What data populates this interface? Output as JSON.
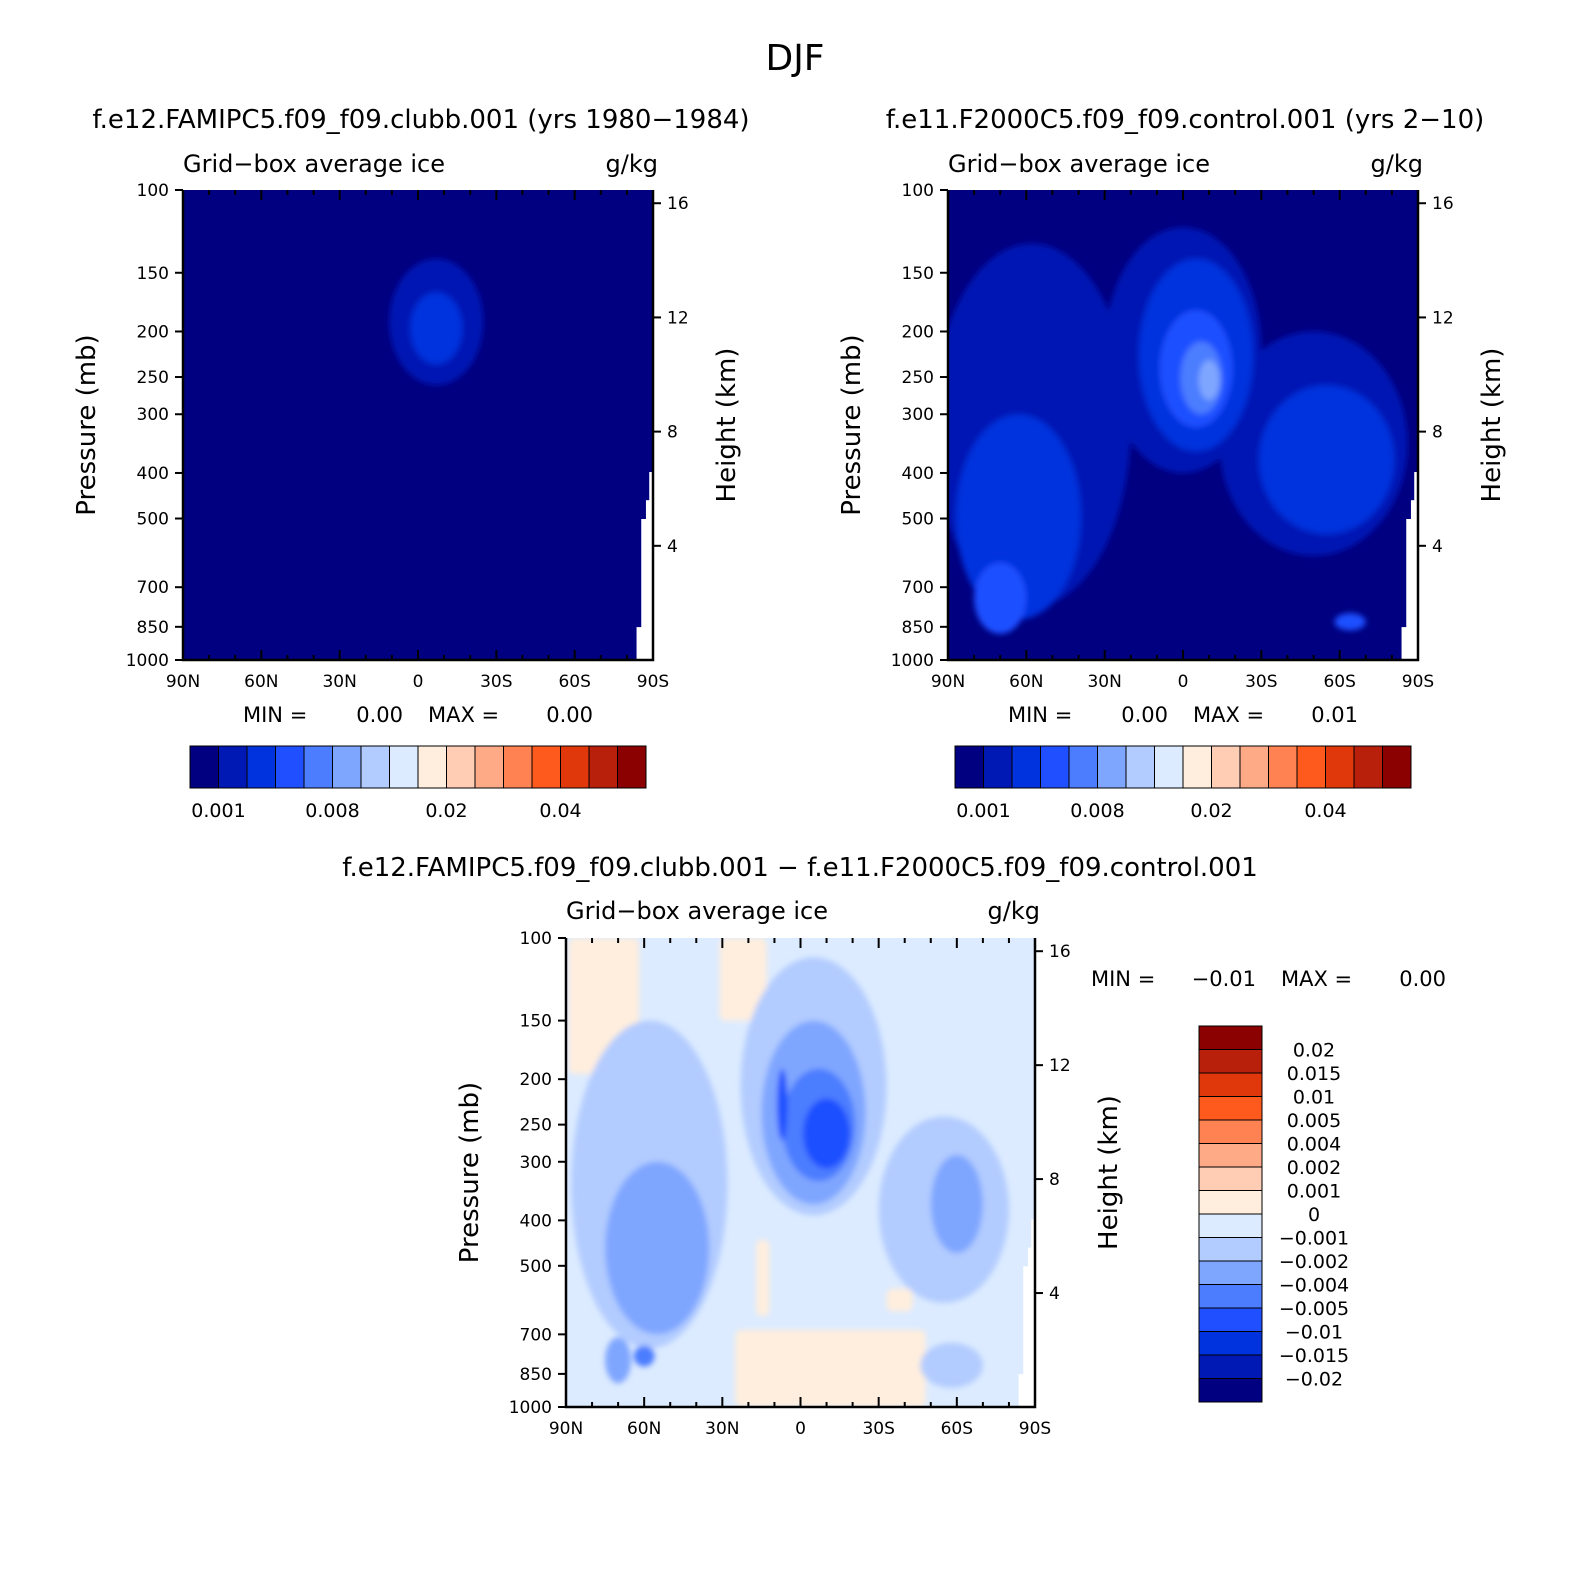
{
  "page_title": "DJF",
  "colors": {
    "pos_levels": [
      "#000080",
      "#0019b4",
      "#0033dd",
      "#1f4fff",
      "#4c7dff",
      "#7fa6ff",
      "#b2ccff",
      "#dcebff",
      "#ffeedd",
      "#ffccb4",
      "#ffaa86",
      "#ff8352",
      "#ff5a1e",
      "#e0370b",
      "#b8200b",
      "#8b0000"
    ],
    "diff_levels": [
      "#8b0000",
      "#b8200b",
      "#e0370b",
      "#ff5a1e",
      "#ff8352",
      "#ffaa86",
      "#ffccb4",
      "#ffeedd",
      "#dcebff",
      "#b2ccff",
      "#7fa6ff",
      "#4c7dff",
      "#1f4fff",
      "#0033dd",
      "#0019b4",
      "#000080"
    ]
  },
  "chart_data": [
    {
      "id": "p1",
      "type": "contour",
      "title": "f.e12.FAMIPC5.f09_f09.clubb.001 (yrs 1980-1984)",
      "variable": "Grid-box average ice",
      "units": "g/kg",
      "ylabel": "Pressure (mb)",
      "y2label": "Height (km)",
      "x_ticks": [
        "90N",
        "60N",
        "30N",
        "0",
        "30S",
        "60S",
        "90S"
      ],
      "y_ticks": [
        "100",
        "150",
        "200",
        "250",
        "300",
        "400",
        "500",
        "700",
        "850",
        "1000"
      ],
      "y2_ticks": [
        "16",
        "12",
        "8",
        "4"
      ],
      "min_label": "MIN =",
      "min_value": "0.00",
      "max_label": "MAX =",
      "max_value": "0.00",
      "colorbar_labels": [
        "0.001",
        "0.008",
        "0.02",
        "0.04"
      ],
      "features": [
        {
          "lat": -7,
          "p": 200,
          "lat_rad": 18,
          "p_rad": 60,
          "level": 1
        },
        {
          "lat": -7,
          "p": 200,
          "lat_rad": 10,
          "p_rad": 35,
          "level": 2
        }
      ]
    },
    {
      "id": "p2",
      "type": "contour",
      "title": "f.e11.F2000C5.f09_f09.control.001 (yrs 2-10)",
      "variable": "Grid-box average ice",
      "units": "g/kg",
      "ylabel": "Pressure (mb)",
      "y2label": "Height (km)",
      "x_ticks": [
        "90N",
        "60N",
        "30N",
        "0",
        "30S",
        "60S",
        "90S"
      ],
      "y_ticks": [
        "100",
        "150",
        "200",
        "250",
        "300",
        "400",
        "500",
        "700",
        "850",
        "1000"
      ],
      "y2_ticks": [
        "16",
        "12",
        "8",
        "4"
      ],
      "min_label": "MIN =",
      "min_value": "0.00",
      "max_label": "MAX =",
      "max_value": "0.01",
      "colorbar_labels": [
        "0.001",
        "0.008",
        "0.02",
        "0.04"
      ],
      "features": [
        {
          "lat": 58,
          "p": 450,
          "lat_rad": 38,
          "p_rad": 320,
          "level": 1
        },
        {
          "lat": -50,
          "p": 400,
          "lat_rad": 36,
          "p_rad": 200,
          "level": 1
        },
        {
          "lat": 0,
          "p": 260,
          "lat_rad": 30,
          "p_rad": 140,
          "level": 1
        },
        {
          "lat": 63,
          "p": 560,
          "lat_rad": 24,
          "p_rad": 260,
          "level": 2
        },
        {
          "lat": -55,
          "p": 400,
          "lat_rad": 26,
          "p_rad": 140,
          "level": 2
        },
        {
          "lat": -5,
          "p": 250,
          "lat_rad": 22,
          "p_rad": 110,
          "level": 2
        },
        {
          "lat": 70,
          "p": 750,
          "lat_rad": 10,
          "p_rad": 130,
          "level": 3
        },
        {
          "lat": -5,
          "p": 250,
          "lat_rad": 14,
          "p_rad": 70,
          "level": 3
        },
        {
          "lat": -64,
          "p": 830,
          "lat_rad": 6,
          "p_rad": 35,
          "level": 3
        },
        {
          "lat": -7,
          "p": 255,
          "lat_rad": 8,
          "p_rad": 45,
          "level": 4
        },
        {
          "lat": -10,
          "p": 255,
          "lat_rad": 4,
          "p_rad": 25,
          "level": 5
        }
      ]
    },
    {
      "id": "p3",
      "type": "contour",
      "title": "f.e12.FAMIPC5.f09_f09.clubb.001 - f.e11.F2000C5.f09_f09.control.001",
      "variable": "Grid-box average ice",
      "units": "g/kg",
      "ylabel": "Pressure (mb)",
      "y2label": "Height (km)",
      "x_ticks": [
        "90N",
        "60N",
        "30N",
        "0",
        "30S",
        "60S",
        "90S"
      ],
      "y_ticks": [
        "100",
        "150",
        "200",
        "250",
        "300",
        "400",
        "500",
        "700",
        "850",
        "1000"
      ],
      "y2_ticks": [
        "16",
        "12",
        "8",
        "4"
      ],
      "min_label": "MIN =",
      "min_value": "-0.01",
      "max_label": "MAX =",
      "max_value": "0.00",
      "colorbar_labels": [
        "0.02",
        "0.015",
        "0.01",
        "0.005",
        "0.004",
        "0.002",
        "0.001",
        "0",
        "-0.001",
        "-0.002",
        "-0.004",
        "-0.005",
        "-0.01",
        "-0.015",
        "-0.02"
      ],
      "features": [
        {
          "lat": 58,
          "p": 450,
          "lat_rad": 30,
          "p_rad": 300,
          "level": 9
        },
        {
          "lat": -55,
          "p": 420,
          "lat_rad": 25,
          "p_rad": 180,
          "level": 9
        },
        {
          "lat": -58,
          "p": 820,
          "lat_rad": 12,
          "p_rad": 90,
          "level": 9
        },
        {
          "lat": -5,
          "p": 250,
          "lat_rad": 28,
          "p_rad": 140,
          "level": 9
        },
        {
          "lat": 55,
          "p": 500,
          "lat_rad": 20,
          "p_rad": 200,
          "level": 10
        },
        {
          "lat": -5,
          "p": 260,
          "lat_rad": 20,
          "p_rad": 110,
          "level": 10
        },
        {
          "lat": -60,
          "p": 380,
          "lat_rad": 10,
          "p_rad": 90,
          "level": 10
        },
        {
          "lat": 70,
          "p": 800,
          "lat_rad": 5,
          "p_rad": 90,
          "level": 10
        },
        {
          "lat": 60,
          "p": 780,
          "lat_rad": 4,
          "p_rad": 40,
          "level": 11
        },
        {
          "lat": -7,
          "p": 260,
          "lat_rad": 14,
          "p_rad": 70,
          "level": 11
        },
        {
          "lat": -10,
          "p": 265,
          "lat_rad": 9,
          "p_rad": 45,
          "level": 12
        },
        {
          "lat": 7,
          "p": 230,
          "lat_rad": 2,
          "p_rad": 40,
          "level": 12
        }
      ],
      "positive_regions": [
        {
          "lat_from": 89,
          "lat_to": 62,
          "p_top": 100,
          "p_bottom": 195,
          "level": 7
        },
        {
          "lat_from": 31,
          "lat_to": 13,
          "p_top": 100,
          "p_bottom": 150,
          "level": 7
        },
        {
          "lat_from": 17,
          "lat_to": 12,
          "p_top": 440,
          "p_bottom": 640,
          "level": 7
        },
        {
          "lat_from": 25,
          "lat_to": -48,
          "p_top": 685,
          "p_bottom": 1000,
          "level": 7
        },
        {
          "lat_from": -33,
          "lat_to": -43,
          "p_top": 560,
          "p_bottom": 625,
          "level": 7
        }
      ]
    }
  ]
}
